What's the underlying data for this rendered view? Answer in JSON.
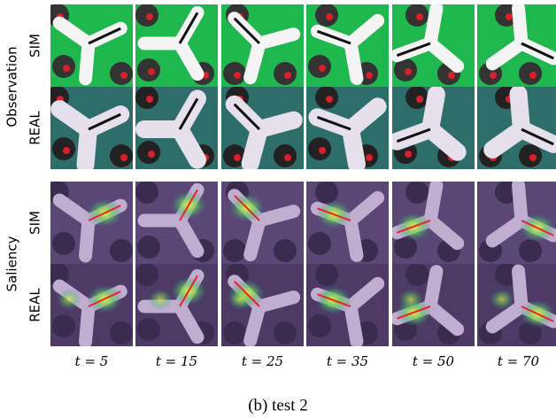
{
  "row_groups": [
    {
      "label": "Observation",
      "rows": [
        "SIM",
        "REAL"
      ]
    },
    {
      "label": "Saliency",
      "rows": [
        "SIM",
        "REAL"
      ]
    }
  ],
  "columns": [
    "t = 5",
    "t = 15",
    "t = 25",
    "t = 35",
    "t = 50",
    "t = 70"
  ],
  "caption": "(b) test 2"
}
